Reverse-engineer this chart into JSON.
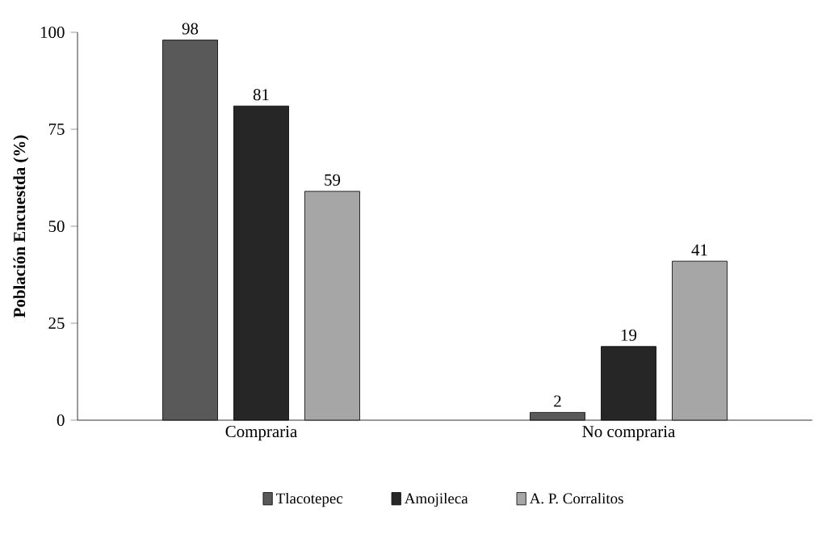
{
  "chart_data": {
    "type": "bar",
    "ylabel": "Población Encuestda (%)",
    "categories": [
      "Compraria",
      "No compraria"
    ],
    "series": [
      {
        "name": "Tlacotepec",
        "color": "#595959",
        "values": [
          98,
          2
        ]
      },
      {
        "name": "Amojileca",
        "color": "#262626",
        "values": [
          81,
          19
        ]
      },
      {
        "name": "A. P. Corralitos",
        "color": "#a6a6a6",
        "values": [
          59,
          41
        ]
      }
    ],
    "ylim": [
      0,
      100
    ],
    "yticks": [
      0,
      25,
      50,
      75,
      100
    ],
    "data_labels": true,
    "legend": "bottom",
    "grid": false
  }
}
